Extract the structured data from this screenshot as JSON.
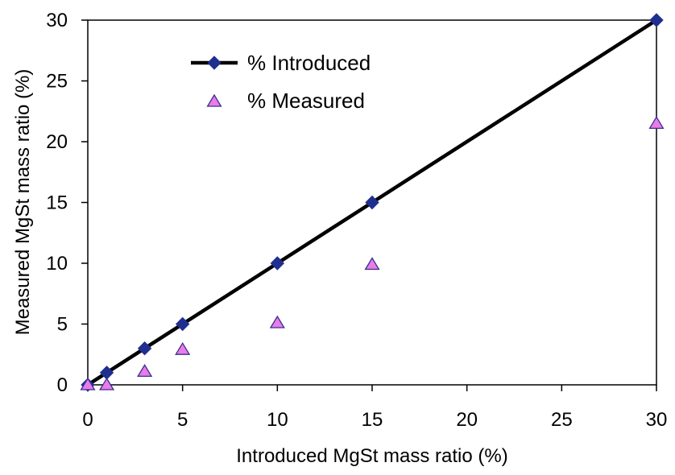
{
  "chart_data": {
    "type": "scatter",
    "title": "",
    "xlabel": "Introduced MgSt mass ratio (%)",
    "ylabel": "Measured MgSt mass ratio (%)",
    "xlim": [
      0,
      30
    ],
    "ylim": [
      0,
      30
    ],
    "xticks": [
      0,
      5,
      10,
      15,
      20,
      25,
      30
    ],
    "yticks": [
      0,
      5,
      10,
      15,
      20,
      25,
      30
    ],
    "grid": false,
    "legend_position": "top-left",
    "series": [
      {
        "name": "% Introduced",
        "style": "line-with-diamond-markers",
        "line_color": "#000000",
        "marker_color": "#1F2F8F",
        "x": [
          0,
          1,
          3,
          5,
          10,
          15,
          30
        ],
        "y": [
          0,
          1,
          3,
          5,
          10,
          15,
          30
        ]
      },
      {
        "name": "% Measured",
        "style": "triangle-markers",
        "marker_color": "#E87CE8",
        "marker_stroke": "#3A2F8F",
        "x": [
          0,
          1,
          3,
          5,
          10,
          15,
          30
        ],
        "y": [
          0,
          0,
          1.1,
          2.9,
          5.1,
          9.9,
          21.5
        ]
      }
    ]
  }
}
